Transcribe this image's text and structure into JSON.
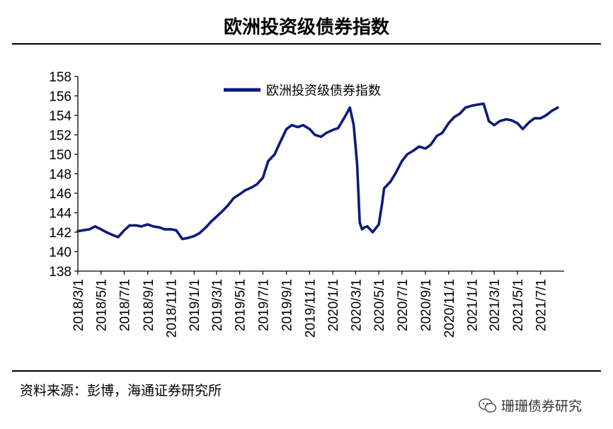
{
  "header": {
    "title": "欧洲投资级债券指数"
  },
  "footer": {
    "source": "资料来源：彭博，海通证券研究所"
  },
  "watermark": {
    "text": "珊珊债券研究",
    "icon": "wechat-icon"
  },
  "colors": {
    "series": "#0d1a7a",
    "axis": "#000000"
  },
  "chart_data": {
    "type": "line",
    "title": "欧洲投资级债券指数",
    "xlabel": "",
    "ylabel": "",
    "ylim": [
      138,
      158
    ],
    "yticks": [
      138,
      140,
      142,
      144,
      146,
      148,
      150,
      152,
      154,
      156,
      158
    ],
    "xlim": [
      "2018-03-01",
      "2021-09-01"
    ],
    "xtick_labels": [
      "2018/3/1",
      "2018/5/1",
      "2018/7/1",
      "2018/9/1",
      "2018/11/1",
      "2019/1/1",
      "2019/3/1",
      "2019/5/1",
      "2019/7/1",
      "2019/9/1",
      "2019/11/1",
      "2020/1/1",
      "2020/3/1",
      "2020/5/1",
      "2020/7/1",
      "2020/9/1",
      "2020/11/1",
      "2021/1/1",
      "2021/3/1",
      "2021/5/1",
      "2021/7/1"
    ],
    "legend": "top-left",
    "grid": false,
    "series": [
      {
        "name": "欧洲投资级债券指数",
        "x": [
          "2018-03-01",
          "2018-03-15",
          "2018-04-01",
          "2018-04-15",
          "2018-05-01",
          "2018-05-15",
          "2018-06-01",
          "2018-06-15",
          "2018-07-01",
          "2018-07-15",
          "2018-08-01",
          "2018-08-15",
          "2018-09-01",
          "2018-09-15",
          "2018-10-01",
          "2018-10-15",
          "2018-11-01",
          "2018-11-15",
          "2018-12-01",
          "2018-12-15",
          "2019-01-01",
          "2019-01-15",
          "2019-02-01",
          "2019-02-15",
          "2019-03-01",
          "2019-03-15",
          "2019-04-01",
          "2019-04-15",
          "2019-05-01",
          "2019-05-15",
          "2019-06-01",
          "2019-06-15",
          "2019-07-01",
          "2019-07-15",
          "2019-08-01",
          "2019-08-15",
          "2019-09-01",
          "2019-09-15",
          "2019-10-01",
          "2019-10-15",
          "2019-11-01",
          "2019-11-15",
          "2019-12-01",
          "2019-12-15",
          "2020-01-01",
          "2020-01-15",
          "2020-02-01",
          "2020-02-15",
          "2020-02-25",
          "2020-03-05",
          "2020-03-12",
          "2020-03-18",
          "2020-03-25",
          "2020-04-01",
          "2020-04-15",
          "2020-05-01",
          "2020-05-10",
          "2020-05-15",
          "2020-06-01",
          "2020-06-15",
          "2020-07-01",
          "2020-07-15",
          "2020-08-01",
          "2020-08-15",
          "2020-09-01",
          "2020-09-15",
          "2020-10-01",
          "2020-10-15",
          "2020-11-01",
          "2020-11-15",
          "2020-12-01",
          "2020-12-15",
          "2021-01-01",
          "2021-01-15",
          "2021-02-01",
          "2021-02-15",
          "2021-03-01",
          "2021-03-15",
          "2021-04-01",
          "2021-04-15",
          "2021-05-01",
          "2021-05-15",
          "2021-06-01",
          "2021-06-15",
          "2021-07-01",
          "2021-07-15",
          "2021-08-01",
          "2021-08-15"
        ],
        "values": [
          142.1,
          142.2,
          142.3,
          142.6,
          142.3,
          142.0,
          141.7,
          141.5,
          142.2,
          142.7,
          142.7,
          142.6,
          142.8,
          142.6,
          142.5,
          142.3,
          142.3,
          142.2,
          141.3,
          141.4,
          141.6,
          141.9,
          142.5,
          143.1,
          143.6,
          144.1,
          144.8,
          145.5,
          145.9,
          146.3,
          146.6,
          146.9,
          147.6,
          149.3,
          150.0,
          151.2,
          152.6,
          153.0,
          152.8,
          153.0,
          152.6,
          152.0,
          151.8,
          152.2,
          152.5,
          152.7,
          153.8,
          154.8,
          153.0,
          149.0,
          143.0,
          142.3,
          142.5,
          142.6,
          142.0,
          142.8,
          145.0,
          146.5,
          147.2,
          148.1,
          149.3,
          150.0,
          150.4,
          150.8,
          150.6,
          151.0,
          151.9,
          152.2,
          153.2,
          153.8,
          154.2,
          154.8,
          155.0,
          155.1,
          155.2,
          153.4,
          153.0,
          153.4,
          153.6,
          153.5,
          153.2,
          152.6,
          153.3,
          153.7,
          153.7,
          154.0,
          154.5,
          154.8
        ]
      }
    ]
  }
}
